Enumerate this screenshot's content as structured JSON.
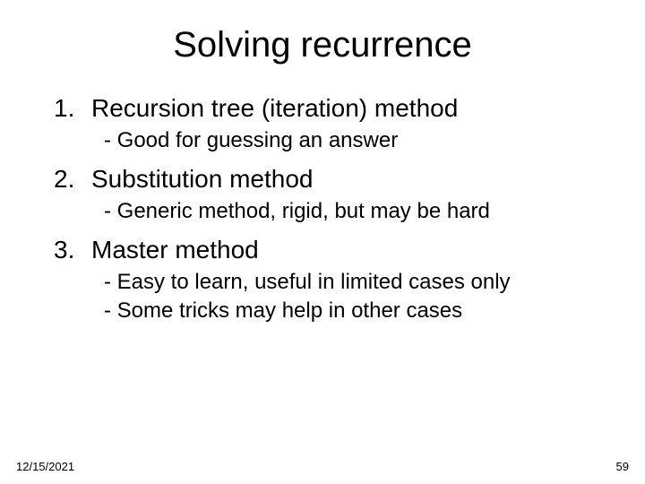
{
  "title": "Solving recurrence",
  "items": [
    {
      "number": "1.",
      "title": "Recursion tree (iteration) method",
      "subs": [
        "- Good for guessing an answer"
      ]
    },
    {
      "number": "2.",
      "title": "Substitution method",
      "subs": [
        "- Generic method, rigid, but may be hard"
      ]
    },
    {
      "number": "3.",
      "title": "Master method",
      "subs": [
        "- Easy to learn, useful in limited cases only",
        "- Some tricks may help in other cases"
      ]
    }
  ],
  "footer": {
    "date": "12/15/2021",
    "page": "59"
  }
}
